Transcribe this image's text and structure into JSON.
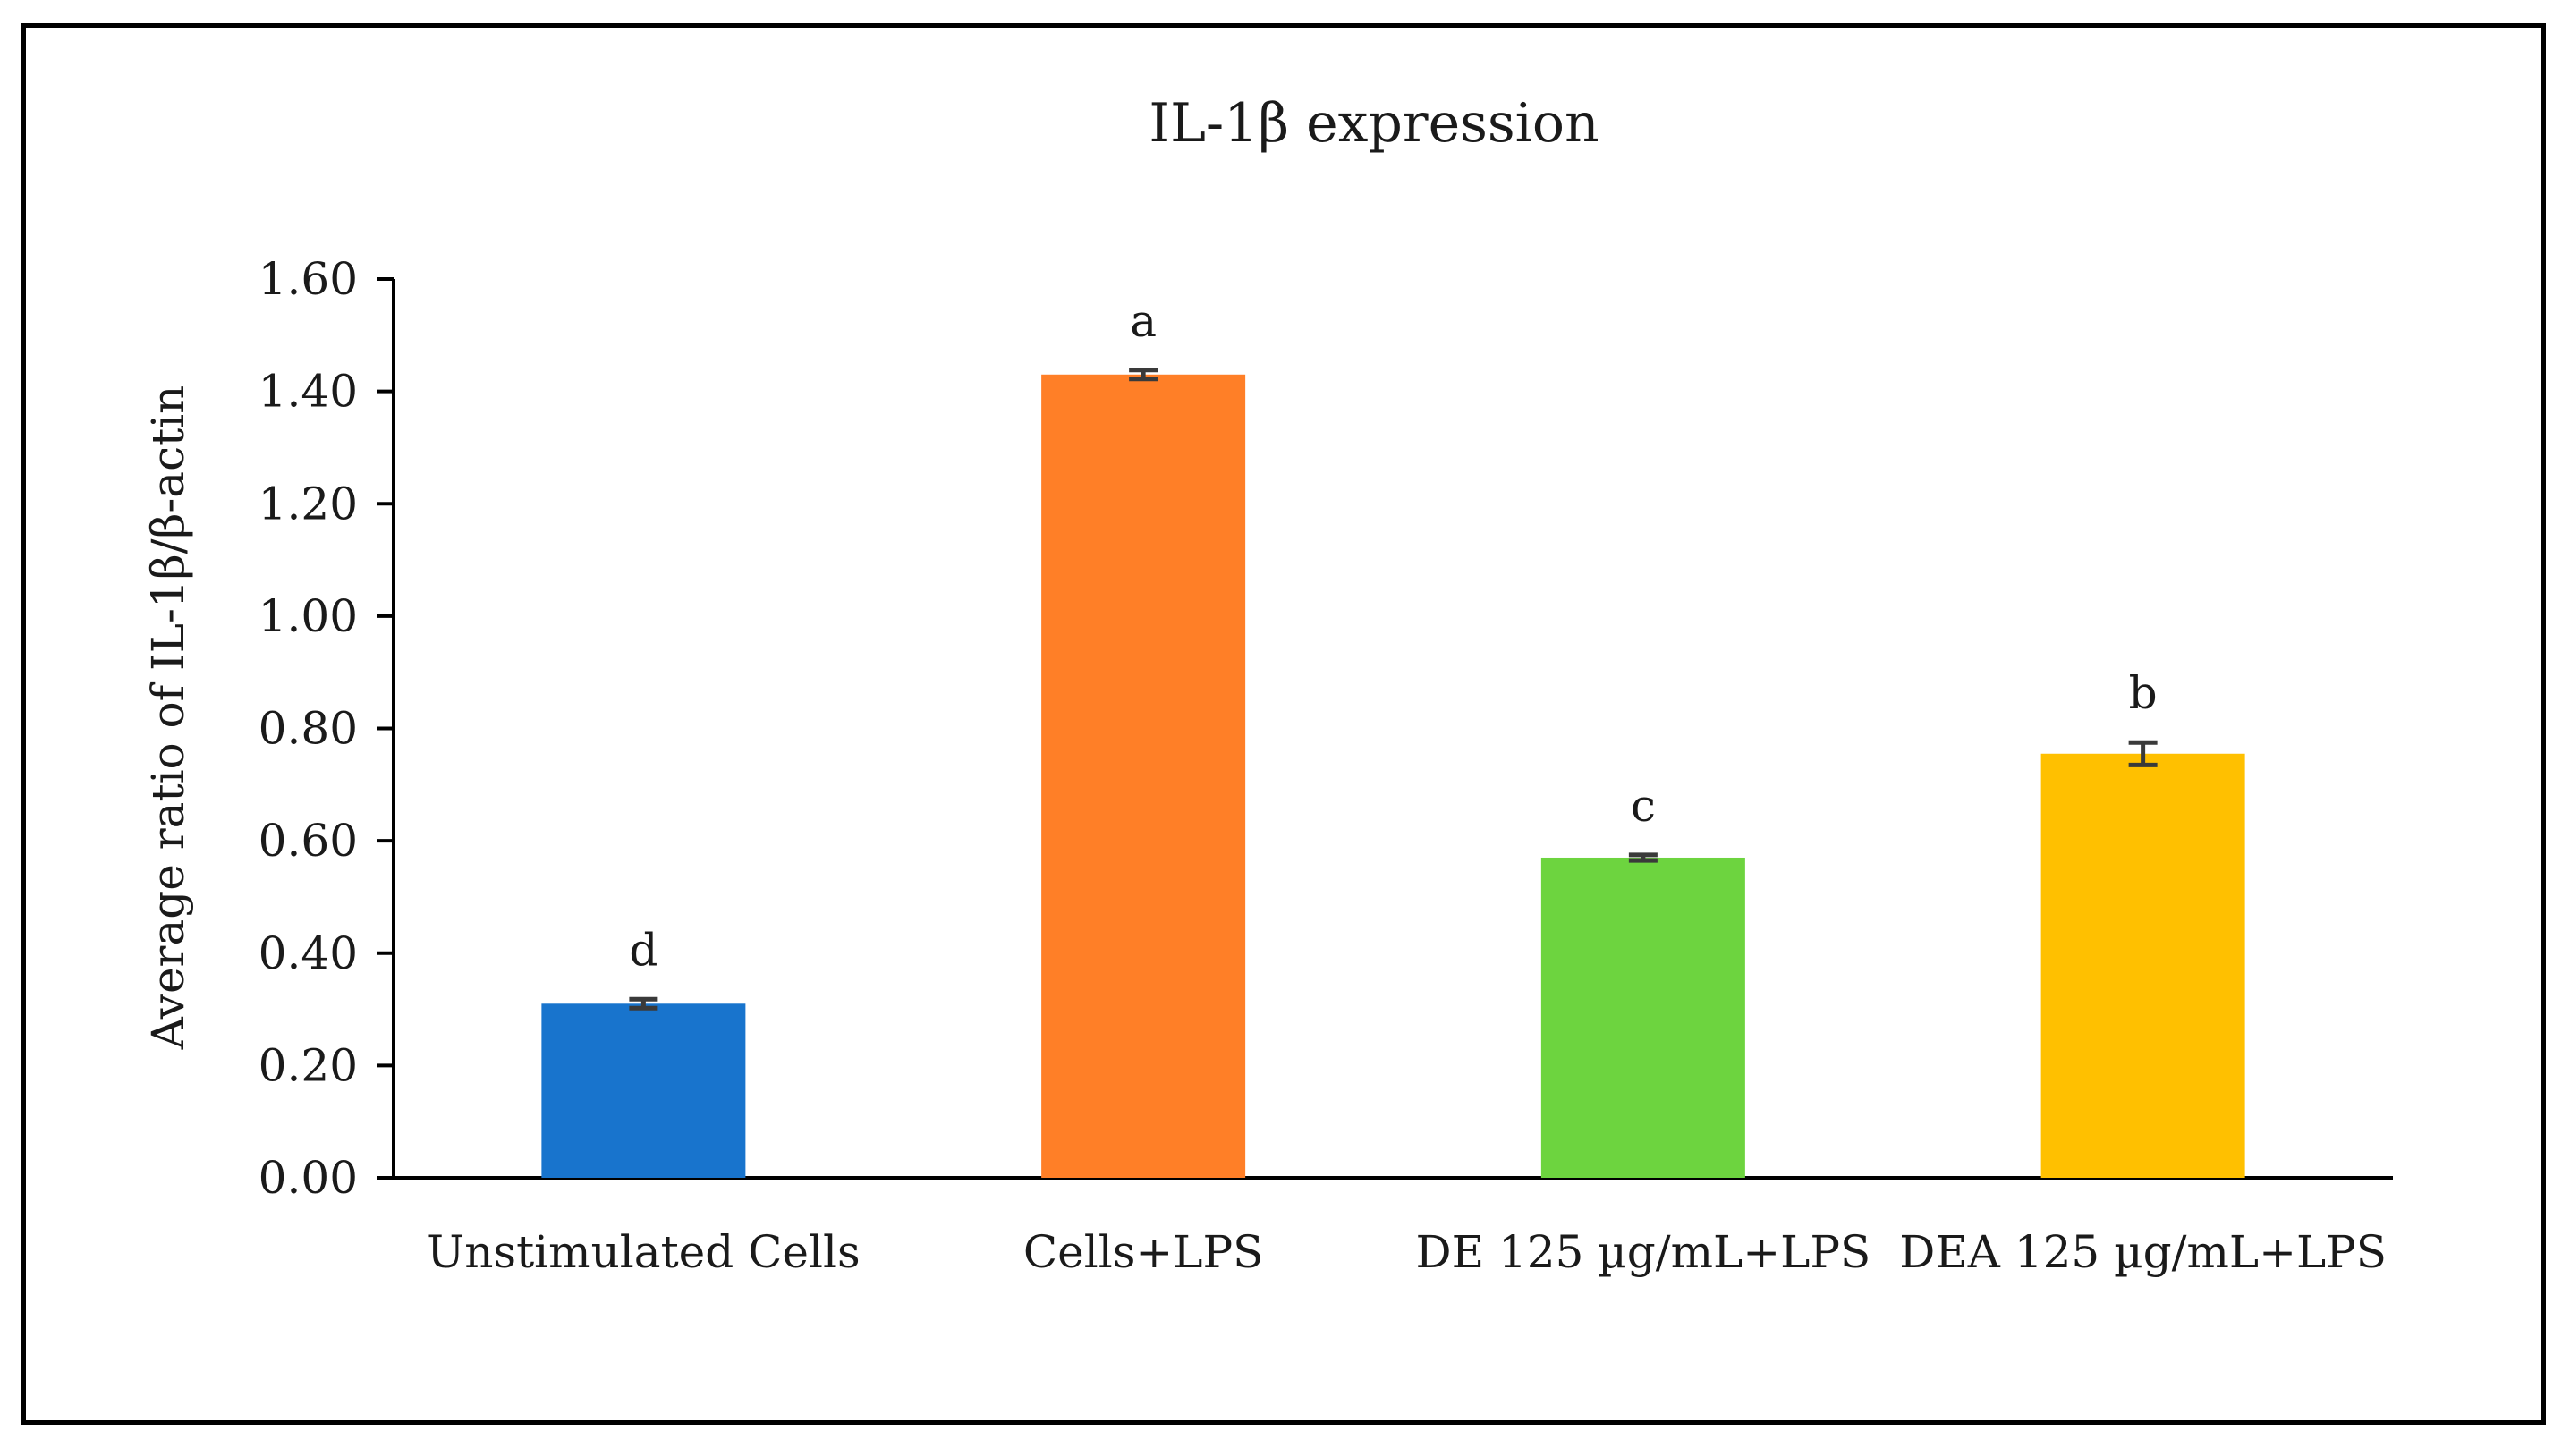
{
  "chart_data": {
    "type": "bar",
    "title": "IL-1β expression",
    "xlabel": "",
    "ylabel": "Average ratio of IL-1β/β-actin",
    "ylim": [
      0,
      1.6
    ],
    "yticks": [
      "0.00",
      "0.20",
      "0.40",
      "0.60",
      "0.80",
      "1.00",
      "1.20",
      "1.40",
      "1.60"
    ],
    "categories": [
      "Unstimulated Cells",
      "Cells+LPS",
      "DE 125 µg/mL+LPS",
      "DEA 125 µg/mL+LPS"
    ],
    "values": [
      0.31,
      1.43,
      0.57,
      0.755
    ],
    "errors": [
      0.008,
      0.008,
      0.005,
      0.02
    ],
    "significance_labels": [
      "d",
      "a",
      "c",
      "b"
    ],
    "colors": [
      "#1874CD",
      "#FF7F27",
      "#6DD43F",
      "#FFC000"
    ],
    "grid": false,
    "legend": "none"
  }
}
